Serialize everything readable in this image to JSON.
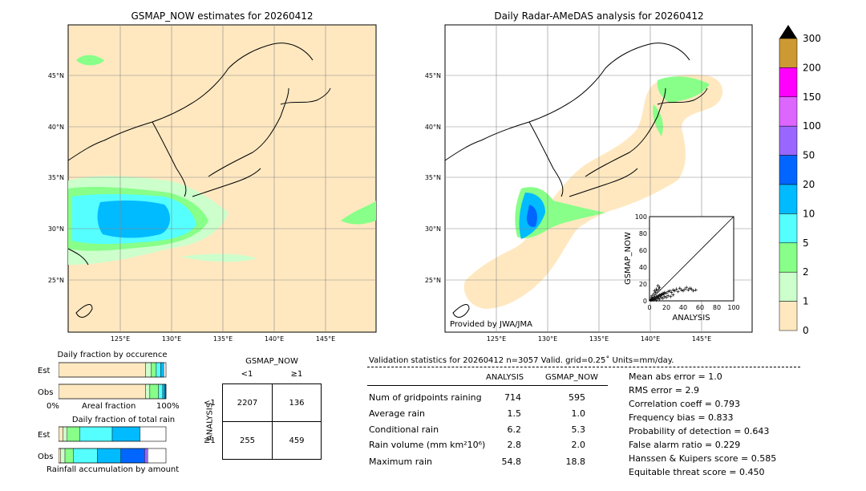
{
  "map_left": {
    "title": "GSMAP_NOW estimates for 20260412",
    "lat_labels": [
      "45°N",
      "40°N",
      "35°N",
      "30°N",
      "25°N"
    ],
    "lon_labels": [
      "125°E",
      "130°E",
      "135°E",
      "140°E",
      "145°E"
    ]
  },
  "map_right": {
    "title": "Daily Radar-AMeDAS analysis for 20260412",
    "lat_labels": [
      "45°N",
      "40°N",
      "35°N",
      "30°N",
      "25°N"
    ],
    "lon_labels": [
      "125°E",
      "130°E",
      "135°E",
      "140°E",
      "145°E"
    ],
    "credit": "Provided by JWA/JMA"
  },
  "colorbar": {
    "labels": [
      "300",
      "200",
      "150",
      "100",
      "50",
      "20",
      "10",
      "5",
      "2",
      "1",
      "0"
    ],
    "colors": [
      "#cc9933",
      "#ff00ff",
      "#dd66ff",
      "#9966ff",
      "#0066ff",
      "#00bbff",
      "#55ffff",
      "#88ff88",
      "#ccffcc",
      "#ffe8c0"
    ]
  },
  "occurrence": {
    "title": "Daily fraction by occurence",
    "est_label": "Est",
    "obs_label": "Obs",
    "axis_left": "0%",
    "axis_mid": "Areal fraction",
    "axis_right": "100%"
  },
  "total_rain": {
    "title": "Daily fraction of total rain",
    "est_label": "Est",
    "obs_label": "Obs",
    "footer": "Rainfall accumulation by amount"
  },
  "contingency": {
    "col_header": "GSMAP_NOW",
    "col_lt": "<1",
    "col_ge": "≥1",
    "row_header": "ANALYSIS",
    "row_lt": "<1",
    "row_ge": "≥1",
    "c11": "2207",
    "c12": "136",
    "c21": "255",
    "c22": "459"
  },
  "validation": {
    "header": "Validation statistics for 20260412  n=3057 Valid. grid=0.25˚ Units=mm/day.",
    "col_analysis": "ANALYSIS",
    "col_gsmap": "GSMAP_NOW",
    "rows": [
      {
        "label": "Num of gridpoints raining",
        "analysis": "714",
        "gsmap": "595"
      },
      {
        "label": "Average rain",
        "analysis": "1.5",
        "gsmap": "1.0"
      },
      {
        "label": "Conditional rain",
        "analysis": "6.2",
        "gsmap": "5.3"
      },
      {
        "label": "Rain volume (mm km²10⁶)",
        "analysis": "2.8",
        "gsmap": "2.0"
      },
      {
        "label": "Maximum rain",
        "analysis": "54.8",
        "gsmap": "18.8"
      }
    ],
    "scores": [
      "Mean abs error =    1.0",
      "RMS error =    2.9",
      "Correlation coeff =  0.793",
      "Frequency bias =  0.833",
      "Probability of detection =  0.643",
      "False alarm ratio =  0.229",
      "Hanssen & Kuipers score =  0.585",
      "Equitable threat score =  0.450"
    ]
  },
  "chart_data": [
    {
      "type": "scatter",
      "xlabel": "ANALYSIS",
      "ylabel": "GSMAP_NOW",
      "xlim": [
        0,
        100
      ],
      "ylim": [
        0,
        100
      ],
      "ticks": [
        "0",
        "20",
        "40",
        "60",
        "80",
        "100"
      ],
      "points": [
        [
          1,
          1
        ],
        [
          2,
          1
        ],
        [
          3,
          2
        ],
        [
          4,
          3
        ],
        [
          5,
          2
        ],
        [
          6,
          4
        ],
        [
          7,
          3
        ],
        [
          8,
          5
        ],
        [
          9,
          4
        ],
        [
          10,
          6
        ],
        [
          11,
          5
        ],
        [
          12,
          7
        ],
        [
          13,
          6
        ],
        [
          14,
          8
        ],
        [
          15,
          7
        ],
        [
          16,
          9
        ],
        [
          17,
          8
        ],
        [
          18,
          10
        ],
        [
          20,
          9
        ],
        [
          22,
          11
        ],
        [
          24,
          12
        ],
        [
          26,
          10
        ],
        [
          28,
          13
        ],
        [
          30,
          12
        ],
        [
          32,
          14
        ],
        [
          34,
          11
        ],
        [
          36,
          15
        ],
        [
          38,
          13
        ],
        [
          40,
          12
        ],
        [
          42,
          14
        ],
        [
          44,
          16
        ],
        [
          46,
          13
        ],
        [
          48,
          15
        ],
        [
          50,
          14
        ],
        [
          52,
          12
        ],
        [
          55,
          13
        ],
        [
          2,
          4
        ],
        [
          3,
          6
        ],
        [
          5,
          8
        ],
        [
          7,
          10
        ],
        [
          9,
          12
        ],
        [
          11,
          14
        ],
        [
          4,
          1
        ],
        [
          6,
          2
        ],
        [
          8,
          1
        ],
        [
          10,
          3
        ],
        [
          12,
          2
        ],
        [
          14,
          4
        ],
        [
          16,
          3
        ],
        [
          18,
          5
        ],
        [
          20,
          4
        ],
        [
          22,
          6
        ],
        [
          25,
          5
        ],
        [
          28,
          7
        ],
        [
          8,
          14
        ],
        [
          12,
          16
        ],
        [
          10,
          18
        ],
        [
          6,
          12
        ]
      ]
    },
    {
      "type": "bar",
      "title": "Daily fraction by occurence",
      "categories": [
        "Est",
        "Obs"
      ],
      "series_colors": [
        "#ffe8c0",
        "#ccffcc",
        "#88ff88",
        "#55ffff",
        "#00bbff",
        "#0066ff"
      ],
      "series": [
        {
          "values": [
            0.81,
            0.81
          ]
        },
        {
          "values": [
            0.05,
            0.04
          ]
        },
        {
          "values": [
            0.05,
            0.08
          ]
        },
        {
          "values": [
            0.04,
            0.04
          ]
        },
        {
          "values": [
            0.03,
            0.02
          ]
        },
        {
          "values": [
            0.0,
            0.01
          ]
        }
      ]
    },
    {
      "type": "bar",
      "title": "Daily fraction of total rain",
      "categories": [
        "Est",
        "Obs"
      ],
      "series_colors": [
        "#ffe8c0",
        "#ccffcc",
        "#88ff88",
        "#55ffff",
        "#00bbff",
        "#0066ff",
        "#9966ff"
      ],
      "series": [
        {
          "values": [
            0.04,
            0.02
          ]
        },
        {
          "values": [
            0.04,
            0.04
          ]
        },
        {
          "values": [
            0.12,
            0.08
          ]
        },
        {
          "values": [
            0.3,
            0.22
          ]
        },
        {
          "values": [
            0.26,
            0.22
          ]
        },
        {
          "values": [
            0.0,
            0.22
          ]
        },
        {
          "values": [
            0.0,
            0.03
          ]
        }
      ]
    }
  ]
}
